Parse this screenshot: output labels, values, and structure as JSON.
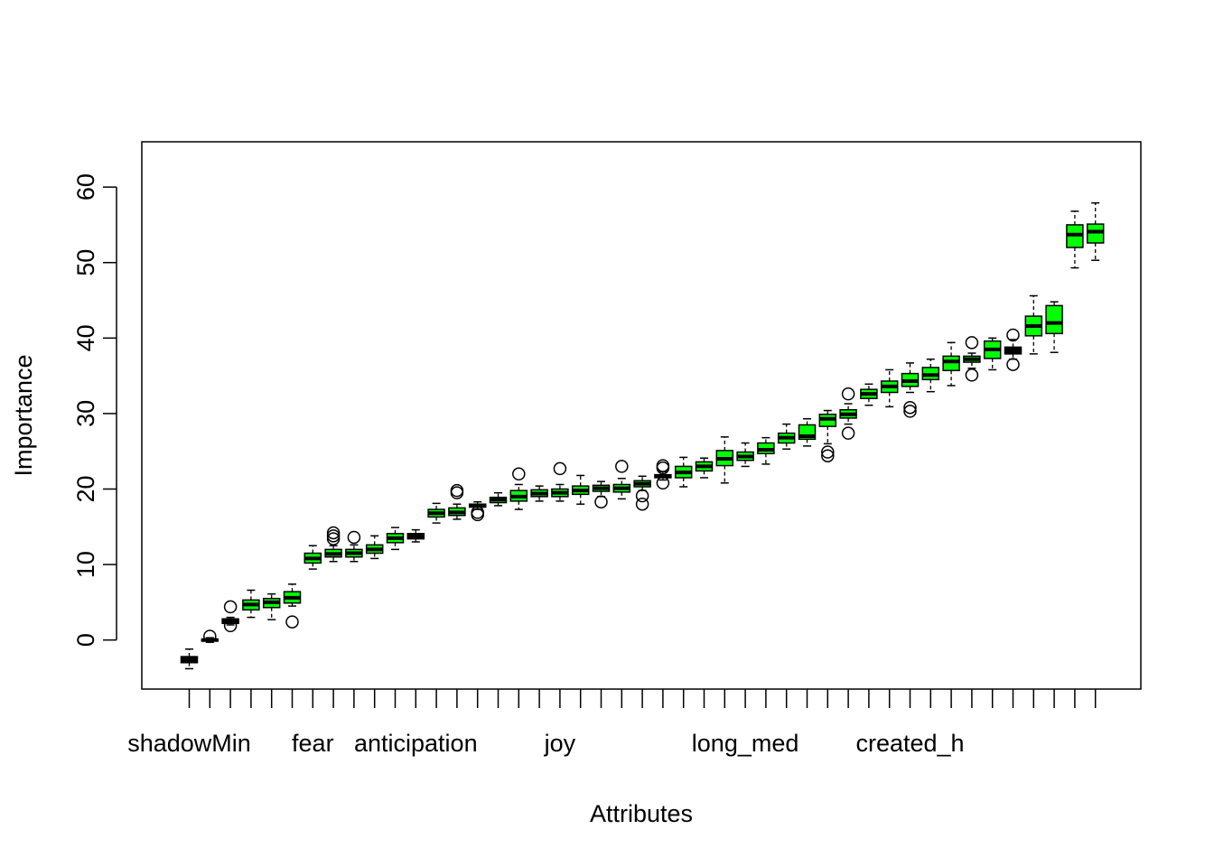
{
  "chart_data": {
    "type": "boxplot",
    "title": "",
    "xlabel": "Attributes",
    "ylabel": "Importance",
    "ylim": [
      -6.5,
      66
    ],
    "yticks": [
      0,
      10,
      20,
      30,
      40,
      50,
      60
    ],
    "colors": {
      "shadow": "#000000",
      "confirmed": "#00ff00",
      "tentative": "#ffff00",
      "rejected": "#ff0000",
      "whisker": "#000000",
      "outline": "#000000"
    },
    "categories": [
      "shadowMin",
      "",
      "",
      "",
      "",
      "",
      "fear",
      "",
      "",
      "",
      "",
      "anticipation",
      "",
      "",
      "",
      "",
      "",
      "",
      "joy",
      "",
      "",
      "",
      "",
      "",
      "",
      "",
      "",
      "long_med",
      "",
      "",
      "",
      "",
      "",
      "",
      "",
      "created_h",
      "",
      "",
      "",
      "",
      "",
      "",
      "",
      "",
      "",
      ""
    ],
    "boxes": [
      {
        "group": "shadow",
        "min": -3.8,
        "q1": -3.0,
        "median": -2.6,
        "q3": -2.2,
        "max": -1.2,
        "outliers": []
      },
      {
        "group": "shadow",
        "min": -0.3,
        "q1": -0.15,
        "median": 0.0,
        "q3": 0.1,
        "max": 0.3,
        "outliers": [
          0.5
        ]
      },
      {
        "group": "shadow",
        "min": 2.0,
        "q1": 2.2,
        "median": 2.5,
        "q3": 2.8,
        "max": 3.0,
        "outliers": [
          4.4,
          1.9
        ]
      },
      {
        "group": "confirmed",
        "min": 3.0,
        "q1": 4.0,
        "median": 4.7,
        "q3": 5.3,
        "max": 6.6,
        "outliers": []
      },
      {
        "group": "confirmed",
        "min": 2.7,
        "q1": 4.3,
        "median": 5.0,
        "q3": 5.5,
        "max": 6.1,
        "outliers": []
      },
      {
        "group": "confirmed",
        "min": 4.5,
        "q1": 4.9,
        "median": 5.6,
        "q3": 6.4,
        "max": 7.4,
        "outliers": [
          2.4
        ]
      },
      {
        "group": "confirmed",
        "min": 9.4,
        "q1": 10.2,
        "median": 10.8,
        "q3": 11.5,
        "max": 12.5,
        "outliers": []
      },
      {
        "group": "confirmed",
        "min": 10.4,
        "q1": 11.0,
        "median": 11.4,
        "q3": 12.0,
        "max": 12.5,
        "outliers": [
          14.2,
          13.8,
          13.4
        ]
      },
      {
        "group": "confirmed",
        "min": 10.4,
        "q1": 11.0,
        "median": 11.5,
        "q3": 12.0,
        "max": 12.6,
        "outliers": [
          13.6
        ]
      },
      {
        "group": "confirmed",
        "min": 10.8,
        "q1": 11.5,
        "median": 12.0,
        "q3": 12.6,
        "max": 13.8,
        "outliers": []
      },
      {
        "group": "confirmed",
        "min": 12.0,
        "q1": 12.9,
        "median": 13.5,
        "q3": 14.1,
        "max": 14.9,
        "outliers": []
      },
      {
        "group": "shadow",
        "min": 13.0,
        "q1": 13.4,
        "median": 13.8,
        "q3": 14.1,
        "max": 14.6,
        "outliers": []
      },
      {
        "group": "confirmed",
        "min": 15.5,
        "q1": 16.3,
        "median": 16.8,
        "q3": 17.3,
        "max": 18.1,
        "outliers": []
      },
      {
        "group": "confirmed",
        "min": 16.0,
        "q1": 16.5,
        "median": 16.9,
        "q3": 17.5,
        "max": 18.0,
        "outliers": [
          19.8,
          19.5
        ]
      },
      {
        "group": "shadow",
        "min": 17.3,
        "q1": 17.6,
        "median": 17.8,
        "q3": 18.0,
        "max": 18.3,
        "outliers": [
          16.9,
          16.6
        ]
      },
      {
        "group": "confirmed",
        "min": 17.8,
        "q1": 18.2,
        "median": 18.6,
        "q3": 18.9,
        "max": 19.5,
        "outliers": []
      },
      {
        "group": "confirmed",
        "min": 17.3,
        "q1": 18.4,
        "median": 19.0,
        "q3": 19.8,
        "max": 20.6,
        "outliers": [
          22.0
        ]
      },
      {
        "group": "confirmed",
        "min": 18.4,
        "q1": 19.0,
        "median": 19.4,
        "q3": 19.9,
        "max": 20.4,
        "outliers": []
      },
      {
        "group": "confirmed",
        "min": 18.4,
        "q1": 19.0,
        "median": 19.5,
        "q3": 20.0,
        "max": 20.6,
        "outliers": [
          22.7
        ]
      },
      {
        "group": "confirmed",
        "min": 18.0,
        "q1": 19.3,
        "median": 19.8,
        "q3": 20.4,
        "max": 21.8,
        "outliers": []
      },
      {
        "group": "confirmed",
        "min": 19.0,
        "q1": 19.7,
        "median": 20.1,
        "q3": 20.5,
        "max": 21.0,
        "outliers": [
          18.3
        ]
      },
      {
        "group": "confirmed",
        "min": 18.7,
        "q1": 19.6,
        "median": 20.1,
        "q3": 20.6,
        "max": 21.4,
        "outliers": [
          23.0
        ]
      },
      {
        "group": "confirmed",
        "min": 19.8,
        "q1": 20.3,
        "median": 20.7,
        "q3": 21.1,
        "max": 21.7,
        "outliers": [
          19.1,
          18.0
        ]
      },
      {
        "group": "shadow",
        "min": 21.2,
        "q1": 21.5,
        "median": 21.7,
        "q3": 21.9,
        "max": 22.3,
        "outliers": [
          23.1,
          22.8,
          20.8
        ]
      },
      {
        "group": "confirmed",
        "min": 20.3,
        "q1": 21.5,
        "median": 22.2,
        "q3": 23.0,
        "max": 24.2,
        "outliers": []
      },
      {
        "group": "confirmed",
        "min": 21.5,
        "q1": 22.4,
        "median": 23.0,
        "q3": 23.6,
        "max": 24.1,
        "outliers": []
      },
      {
        "group": "confirmed",
        "min": 20.8,
        "q1": 23.1,
        "median": 24.0,
        "q3": 25.1,
        "max": 26.9,
        "outliers": []
      },
      {
        "group": "confirmed",
        "min": 23.0,
        "q1": 23.8,
        "median": 24.3,
        "q3": 24.9,
        "max": 26.1,
        "outliers": []
      },
      {
        "group": "confirmed",
        "min": 23.3,
        "q1": 24.7,
        "median": 25.2,
        "q3": 26.1,
        "max": 26.8,
        "outliers": []
      },
      {
        "group": "confirmed",
        "min": 25.3,
        "q1": 26.1,
        "median": 26.8,
        "q3": 27.4,
        "max": 28.6,
        "outliers": []
      },
      {
        "group": "confirmed",
        "min": 25.7,
        "q1": 26.6,
        "median": 27.0,
        "q3": 28.5,
        "max": 29.3,
        "outliers": []
      },
      {
        "group": "confirmed",
        "min": 26.0,
        "q1": 28.3,
        "median": 29.3,
        "q3": 29.9,
        "max": 30.4,
        "outliers": [
          24.9,
          24.4
        ]
      },
      {
        "group": "confirmed",
        "min": 28.6,
        "q1": 29.4,
        "median": 29.9,
        "q3": 30.5,
        "max": 31.3,
        "outliers": [
          32.6,
          27.4
        ]
      },
      {
        "group": "confirmed",
        "min": 31.1,
        "q1": 32.0,
        "median": 32.6,
        "q3": 33.2,
        "max": 33.9,
        "outliers": []
      },
      {
        "group": "confirmed",
        "min": 30.9,
        "q1": 32.8,
        "median": 33.6,
        "q3": 34.3,
        "max": 35.8,
        "outliers": []
      },
      {
        "group": "confirmed",
        "min": 32.8,
        "q1": 33.6,
        "median": 34.3,
        "q3": 35.3,
        "max": 36.7,
        "outliers": [
          30.8,
          30.3
        ]
      },
      {
        "group": "confirmed",
        "min": 32.9,
        "q1": 34.5,
        "median": 35.1,
        "q3": 36.1,
        "max": 37.2,
        "outliers": []
      },
      {
        "group": "confirmed",
        "min": 33.7,
        "q1": 35.7,
        "median": 36.9,
        "q3": 37.6,
        "max": 39.4,
        "outliers": []
      },
      {
        "group": "confirmed",
        "min": 36.0,
        "q1": 36.8,
        "median": 37.2,
        "q3": 37.6,
        "max": 38.0,
        "outliers": [
          39.4,
          35.1
        ]
      },
      {
        "group": "confirmed",
        "min": 35.8,
        "q1": 37.3,
        "median": 38.5,
        "q3": 39.6,
        "max": 40.0,
        "outliers": []
      },
      {
        "group": "shadow",
        "min": 37.2,
        "q1": 37.9,
        "median": 38.4,
        "q3": 38.8,
        "max": 39.8,
        "outliers": [
          40.4,
          36.5
        ]
      },
      {
        "group": "confirmed",
        "min": 37.9,
        "q1": 40.3,
        "median": 41.6,
        "q3": 42.9,
        "max": 45.6,
        "outliers": []
      },
      {
        "group": "confirmed",
        "min": 38.1,
        "q1": 40.6,
        "median": 42.0,
        "q3": 44.3,
        "max": 44.8,
        "outliers": []
      },
      {
        "group": "confirmed",
        "min": 49.3,
        "q1": 52.0,
        "median": 53.7,
        "q3": 55.0,
        "max": 56.8,
        "outliers": []
      },
      {
        "group": "confirmed",
        "min": 50.3,
        "q1": 52.6,
        "median": 54.1,
        "q3": 55.1,
        "max": 57.9,
        "outliers": []
      }
    ]
  }
}
